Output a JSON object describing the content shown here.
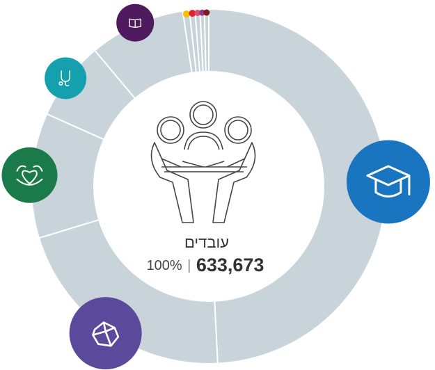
{
  "chart_data": {
    "type": "donut",
    "categories": [
      null,
      null,
      null,
      null,
      null,
      null,
      null,
      null,
      null,
      null
    ],
    "values": [
      49.2,
      21.1,
      11.4,
      7.2,
      8.75,
      0.6,
      0.5,
      0.45,
      0.4,
      0.4
    ],
    "color": "#c9d3da",
    "badge_colors": [
      "#1a75c0",
      "#5b4a9b",
      "#1a7a4a",
      "#15a0b0",
      "#4f1a5e",
      "#f5c000",
      "#e0202c",
      "#e04a6a",
      "#8a3a8a",
      "#7a1a1a"
    ],
    "center": {
      "label": "עובדים",
      "share": "100%",
      "separator": "|",
      "total": "633,673"
    }
  }
}
